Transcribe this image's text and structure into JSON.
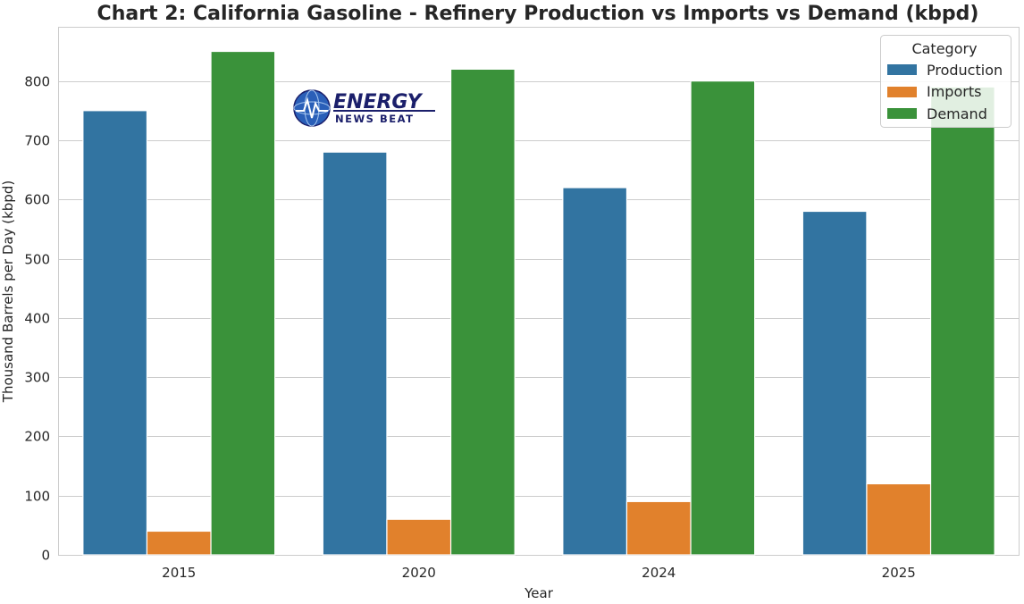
{
  "chart_data": {
    "type": "bar",
    "title": "Chart 2: California Gasoline - Refinery Production vs Imports vs Demand (kbpd)",
    "xlabel": "Year",
    "ylabel": "Thousand Barrels per Day (kbpd)",
    "categories": [
      "2015",
      "2020",
      "2024",
      "2025"
    ],
    "series": [
      {
        "name": "Production",
        "color": "#3274a1",
        "values": [
          750,
          680,
          620,
          580
        ]
      },
      {
        "name": "Imports",
        "color": "#e1812c",
        "values": [
          40,
          60,
          90,
          120
        ]
      },
      {
        "name": "Demand",
        "color": "#3a923a",
        "values": [
          850,
          820,
          800,
          790
        ]
      }
    ],
    "ylim": [
      0,
      890
    ],
    "yticks": [
      0,
      100,
      200,
      300,
      400,
      500,
      600,
      700,
      800
    ],
    "grid": true,
    "legend": {
      "title": "Category",
      "position": "top-right"
    }
  },
  "logo": {
    "line1": "ENERGY",
    "line2": "NEWS BEAT"
  }
}
